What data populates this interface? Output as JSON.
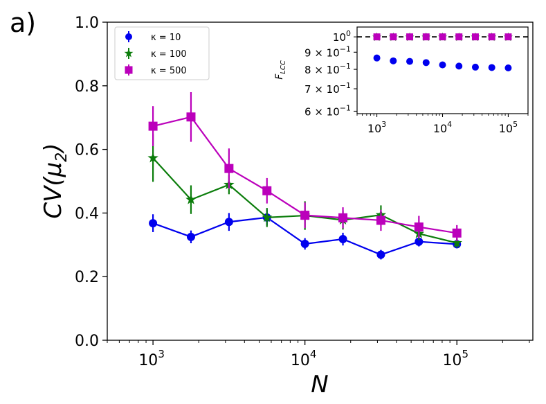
{
  "panel_label": "a)",
  "chart_data": [
    {
      "type": "line",
      "xscale": "log",
      "xlim": [
        500,
        316228
      ],
      "ylim": [
        0.0,
        1.0
      ],
      "xlabel": "N",
      "ylabel": "CV(μ₂)",
      "ylabel_parts": {
        "main": "CV(",
        "mu": "μ",
        "sub": "2",
        "close": ")"
      },
      "xticks": [
        {
          "value": 1000,
          "base": "10",
          "exp": "3"
        },
        {
          "value": 10000,
          "base": "10",
          "exp": "4"
        },
        {
          "value": 100000,
          "base": "10",
          "exp": "5"
        }
      ],
      "yticks": [
        {
          "value": 0.0,
          "label": "0.0"
        },
        {
          "value": 0.2,
          "label": "0.2"
        },
        {
          "value": 0.4,
          "label": "0.4"
        },
        {
          "value": 0.6,
          "label": "0.6"
        },
        {
          "value": 0.8,
          "label": "0.8"
        },
        {
          "value": 1.0,
          "label": "1.0"
        }
      ],
      "legend_placement": "top-left",
      "series": [
        {
          "name": "κ = 10",
          "color": "#0000ee",
          "marker": "circle",
          "x": [
            1000,
            1778,
            3162,
            5623,
            10000,
            17783,
            31623,
            56234,
            100000
          ],
          "y": [
            0.368,
            0.325,
            0.372,
            0.386,
            0.303,
            0.318,
            0.269,
            0.31,
            0.302
          ],
          "err": [
            0.028,
            0.02,
            0.028,
            0.025,
            0.018,
            0.02,
            0.015,
            0.015,
            0.013
          ]
        },
        {
          "name": "κ = 100",
          "color": "#0b7d0b",
          "marker": "star",
          "x": [
            1000,
            1778,
            3162,
            5623,
            10000,
            17783,
            31623,
            56234,
            100000
          ],
          "y": [
            0.573,
            0.442,
            0.489,
            0.386,
            0.392,
            0.378,
            0.394,
            0.335,
            0.306
          ],
          "err": [
            0.075,
            0.045,
            0.03,
            0.03,
            0.045,
            0.03,
            0.03,
            0.02,
            0.015
          ]
        },
        {
          "name": "κ = 500",
          "color": "#bb00bb",
          "marker": "square",
          "x": [
            1000,
            1778,
            3162,
            5623,
            10000,
            17783,
            31623,
            56234,
            100000
          ],
          "y": [
            0.673,
            0.702,
            0.54,
            0.47,
            0.393,
            0.385,
            0.377,
            0.356,
            0.337
          ],
          "err": [
            0.063,
            0.078,
            0.063,
            0.04,
            0.04,
            0.033,
            0.033,
            0.035,
            0.025
          ]
        }
      ]
    },
    {
      "type": "scatter",
      "inset": true,
      "xscale": "log",
      "yscale": "log",
      "xlim": [
        500,
        200000
      ],
      "ylim": [
        0.59,
        1.07
      ],
      "ylabel": "F_LCC",
      "ylabel_parts": {
        "main": "F",
        "sub": "LCC"
      },
      "xticks": [
        {
          "value": 1000,
          "base": "10",
          "exp": "3"
        },
        {
          "value": 10000,
          "base": "10",
          "exp": "4"
        },
        {
          "value": 100000,
          "base": "10",
          "exp": "5"
        }
      ],
      "yticks": [
        {
          "value": 1.0,
          "base": "10",
          "exp": "0",
          "mant": ""
        },
        {
          "value": 0.9,
          "base": "10",
          "exp": "−1",
          "mant": "9 × "
        },
        {
          "value": 0.8,
          "base": "10",
          "exp": "−1",
          "mant": "8 × "
        },
        {
          "value": 0.7,
          "base": "10",
          "exp": "−1",
          "mant": "7 × "
        },
        {
          "value": 0.6,
          "base": "10",
          "exp": "−1",
          "mant": "6 × "
        }
      ],
      "reference_line": {
        "y": 1.0,
        "style": "dashed",
        "color": "#000000"
      },
      "series": [
        {
          "color": "#0000ee",
          "marker": "circle",
          "x": [
            1000,
            1778,
            3162,
            5623,
            10000,
            17783,
            31623,
            56234,
            100000
          ],
          "y": [
            0.865,
            0.848,
            0.845,
            0.838,
            0.825,
            0.818,
            0.812,
            0.81,
            0.808
          ]
        },
        {
          "color": "#0b7d0b",
          "marker": "star",
          "x": [
            1000,
            1778,
            3162,
            5623,
            10000,
            17783,
            31623,
            56234,
            100000
          ],
          "y": [
            0.998,
            0.998,
            0.998,
            0.998,
            0.998,
            0.998,
            0.998,
            0.998,
            0.998
          ]
        },
        {
          "color": "#bb00bb",
          "marker": "square",
          "x": [
            1000,
            1778,
            3162,
            5623,
            10000,
            17783,
            31623,
            56234,
            100000
          ],
          "y": [
            1.0,
            1.0,
            1.0,
            1.0,
            1.0,
            1.0,
            1.0,
            1.0,
            1.0
          ]
        }
      ]
    }
  ]
}
